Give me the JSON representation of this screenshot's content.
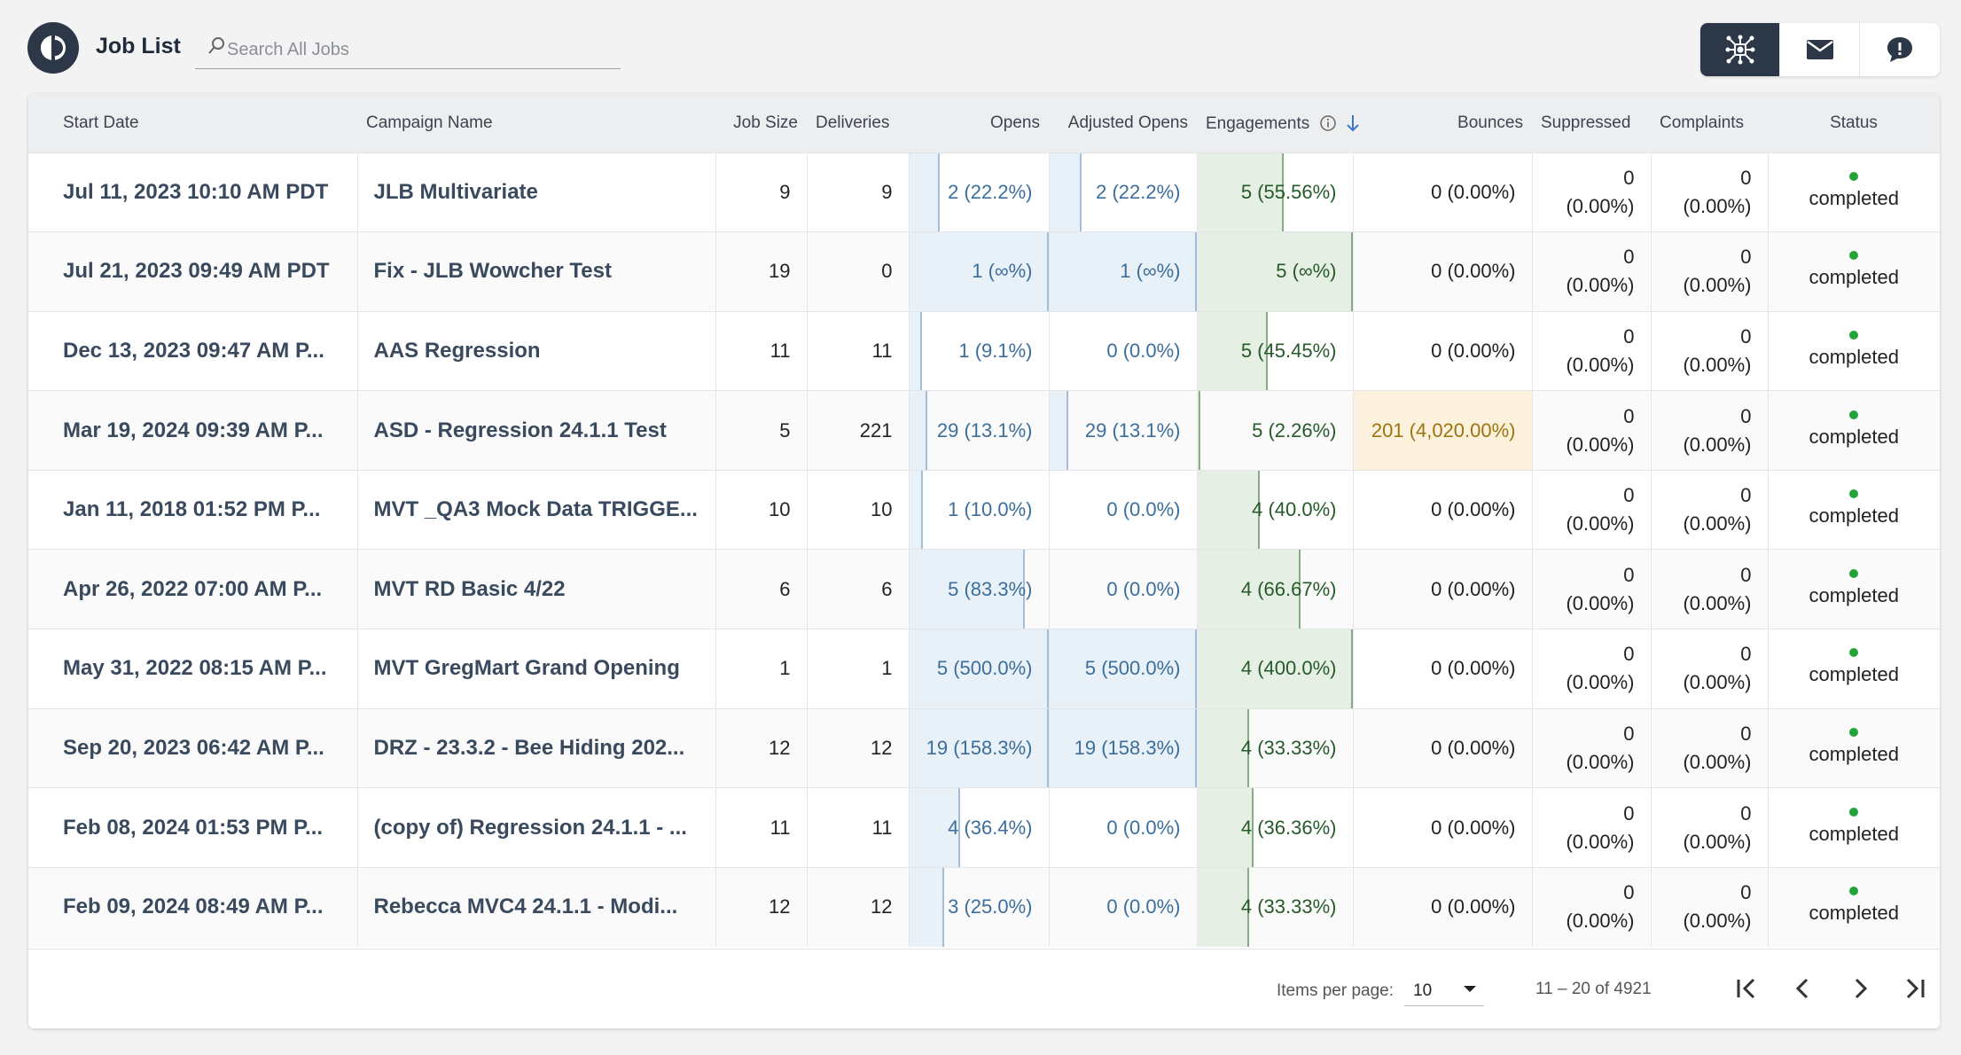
{
  "app": {
    "title": "Job List"
  },
  "search": {
    "placeholder": "Search All Jobs",
    "value": ""
  },
  "toggle": [
    {
      "name": "campaign-icon",
      "active": true
    },
    {
      "name": "email-icon",
      "active": false
    },
    {
      "name": "chat-icon",
      "active": false
    }
  ],
  "columns": {
    "start_date": "Start Date",
    "campaign_name": "Campaign Name",
    "job_size": "Job Size",
    "deliveries": "Deliveries",
    "opens": "Opens",
    "adjusted_opens": "Adjusted Opens",
    "engagements": "Engagements",
    "bounces": "Bounces",
    "suppressed": "Suppressed",
    "complaints": "Complaints",
    "status": "Status"
  },
  "sort": {
    "column": "engagements",
    "direction": "descending"
  },
  "rows": [
    {
      "start_date": "Jul 11, 2023 10:10 AM PDT",
      "campaign": "JLB Multivariate",
      "job_size": "9",
      "deliveries": "9",
      "opens": "2 (22.2%)",
      "opens_fill": 0.222,
      "adj_opens": "2 (22.2%)",
      "adj_fill": 0.222,
      "engagements": "5 (55.56%)",
      "eng_fill": 0.5556,
      "bounces": "0 (0.00%)",
      "bounce_hi": false,
      "suppressed": "0",
      "suppressed_pct": "(0.00%)",
      "complaints": "0",
      "complaints_pct": "(0.00%)",
      "status": "completed"
    },
    {
      "start_date": "Jul 21, 2023 09:49 AM PDT",
      "campaign": "Fix - JLB Wowcher Test",
      "job_size": "19",
      "deliveries": "0",
      "opens": "1 (∞%)",
      "opens_fill": 1,
      "adj_opens": "1 (∞%)",
      "adj_fill": 1,
      "engagements": "5 (∞%)",
      "eng_fill": 1,
      "bounces": "0 (0.00%)",
      "bounce_hi": false,
      "suppressed": "0",
      "suppressed_pct": "(0.00%)",
      "complaints": "0",
      "complaints_pct": "(0.00%)",
      "status": "completed"
    },
    {
      "start_date": "Dec 13, 2023 09:47 AM P...",
      "campaign": "AAS Regression",
      "job_size": "11",
      "deliveries": "11",
      "opens": "1 (9.1%)",
      "opens_fill": 0.091,
      "adj_opens": "0 (0.0%)",
      "adj_fill": 0,
      "engagements": "5 (45.45%)",
      "eng_fill": 0.4545,
      "bounces": "0 (0.00%)",
      "bounce_hi": false,
      "suppressed": "0",
      "suppressed_pct": "(0.00%)",
      "complaints": "0",
      "complaints_pct": "(0.00%)",
      "status": "completed"
    },
    {
      "start_date": "Mar 19, 2024 09:39 AM P...",
      "campaign": "ASD - Regression 24.1.1 Test",
      "job_size": "5",
      "deliveries": "221",
      "opens": "29 (13.1%)",
      "opens_fill": 0.131,
      "adj_opens": "29 (13.1%)",
      "adj_fill": 0.131,
      "engagements": "5 (2.26%)",
      "eng_fill": 0.0226,
      "bounces": "201 (4,020.00%)",
      "bounce_hi": true,
      "suppressed": "0",
      "suppressed_pct": "(0.00%)",
      "complaints": "0",
      "complaints_pct": "(0.00%)",
      "status": "completed"
    },
    {
      "start_date": "Jan 11, 2018 01:52 PM P...",
      "campaign": "MVT _QA3 Mock Data TRIGGE...",
      "job_size": "10",
      "deliveries": "10",
      "opens": "1 (10.0%)",
      "opens_fill": 0.1,
      "adj_opens": "0 (0.0%)",
      "adj_fill": 0,
      "engagements": "4 (40.0%)",
      "eng_fill": 0.4,
      "bounces": "0 (0.00%)",
      "bounce_hi": false,
      "suppressed": "0",
      "suppressed_pct": "(0.00%)",
      "complaints": "0",
      "complaints_pct": "(0.00%)",
      "status": "completed"
    },
    {
      "start_date": "Apr 26, 2022 07:00 AM P...",
      "campaign": "MVT RD Basic 4/22",
      "job_size": "6",
      "deliveries": "6",
      "opens": "5 (83.3%)",
      "opens_fill": 0.833,
      "adj_opens": "0 (0.0%)",
      "adj_fill": 0,
      "engagements": "4 (66.67%)",
      "eng_fill": 0.6667,
      "bounces": "0 (0.00%)",
      "bounce_hi": false,
      "suppressed": "0",
      "suppressed_pct": "(0.00%)",
      "complaints": "0",
      "complaints_pct": "(0.00%)",
      "status": "completed"
    },
    {
      "start_date": "May 31, 2022 08:15 AM P...",
      "campaign": "MVT GregMart Grand Opening",
      "job_size": "1",
      "deliveries": "1",
      "opens": "5 (500.0%)",
      "opens_fill": 1,
      "adj_opens": "5 (500.0%)",
      "adj_fill": 1,
      "engagements": "4 (400.0%)",
      "eng_fill": 1,
      "bounces": "0 (0.00%)",
      "bounce_hi": false,
      "suppressed": "0",
      "suppressed_pct": "(0.00%)",
      "complaints": "0",
      "complaints_pct": "(0.00%)",
      "status": "completed"
    },
    {
      "start_date": "Sep 20, 2023 06:42 AM P...",
      "campaign": "DRZ - 23.3.2 - Bee Hiding 202...",
      "job_size": "12",
      "deliveries": "12",
      "opens": "19 (158.3%)",
      "opens_fill": 1,
      "adj_opens": "19 (158.3%)",
      "adj_fill": 1,
      "engagements": "4 (33.33%)",
      "eng_fill": 0.3333,
      "bounces": "0 (0.00%)",
      "bounce_hi": false,
      "suppressed": "0",
      "suppressed_pct": "(0.00%)",
      "complaints": "0",
      "complaints_pct": "(0.00%)",
      "status": "completed"
    },
    {
      "start_date": "Feb 08, 2024 01:53 PM P...",
      "campaign": "(copy of) Regression 24.1.1 - ...",
      "job_size": "11",
      "deliveries": "11",
      "opens": "4 (36.4%)",
      "opens_fill": 0.364,
      "adj_opens": "0 (0.0%)",
      "adj_fill": 0,
      "engagements": "4 (36.36%)",
      "eng_fill": 0.3636,
      "bounces": "0 (0.00%)",
      "bounce_hi": false,
      "suppressed": "0",
      "suppressed_pct": "(0.00%)",
      "complaints": "0",
      "complaints_pct": "(0.00%)",
      "status": "completed"
    },
    {
      "start_date": "Feb 09, 2024 08:49 AM P...",
      "campaign": "Rebecca MVC4 24.1.1 - Modi...",
      "job_size": "12",
      "deliveries": "12",
      "opens": "3 (25.0%)",
      "opens_fill": 0.25,
      "adj_opens": "0 (0.0%)",
      "adj_fill": 0,
      "engagements": "4 (33.33%)",
      "eng_fill": 0.3333,
      "bounces": "0 (0.00%)",
      "bounce_hi": false,
      "suppressed": "0",
      "suppressed_pct": "(0.00%)",
      "complaints": "0",
      "complaints_pct": "(0.00%)",
      "status": "completed"
    }
  ],
  "pagination": {
    "items_per_page_label": "Items per page:",
    "items_per_page": "10",
    "range": "11 – 20 of 4921"
  },
  "colors": {
    "navy": "#2c3748",
    "open_bar": "#e8f0f8",
    "eng_bar": "#e5efe3",
    "status_dot": "#23a33a",
    "bounce_highlight": "#fbf1dc"
  }
}
